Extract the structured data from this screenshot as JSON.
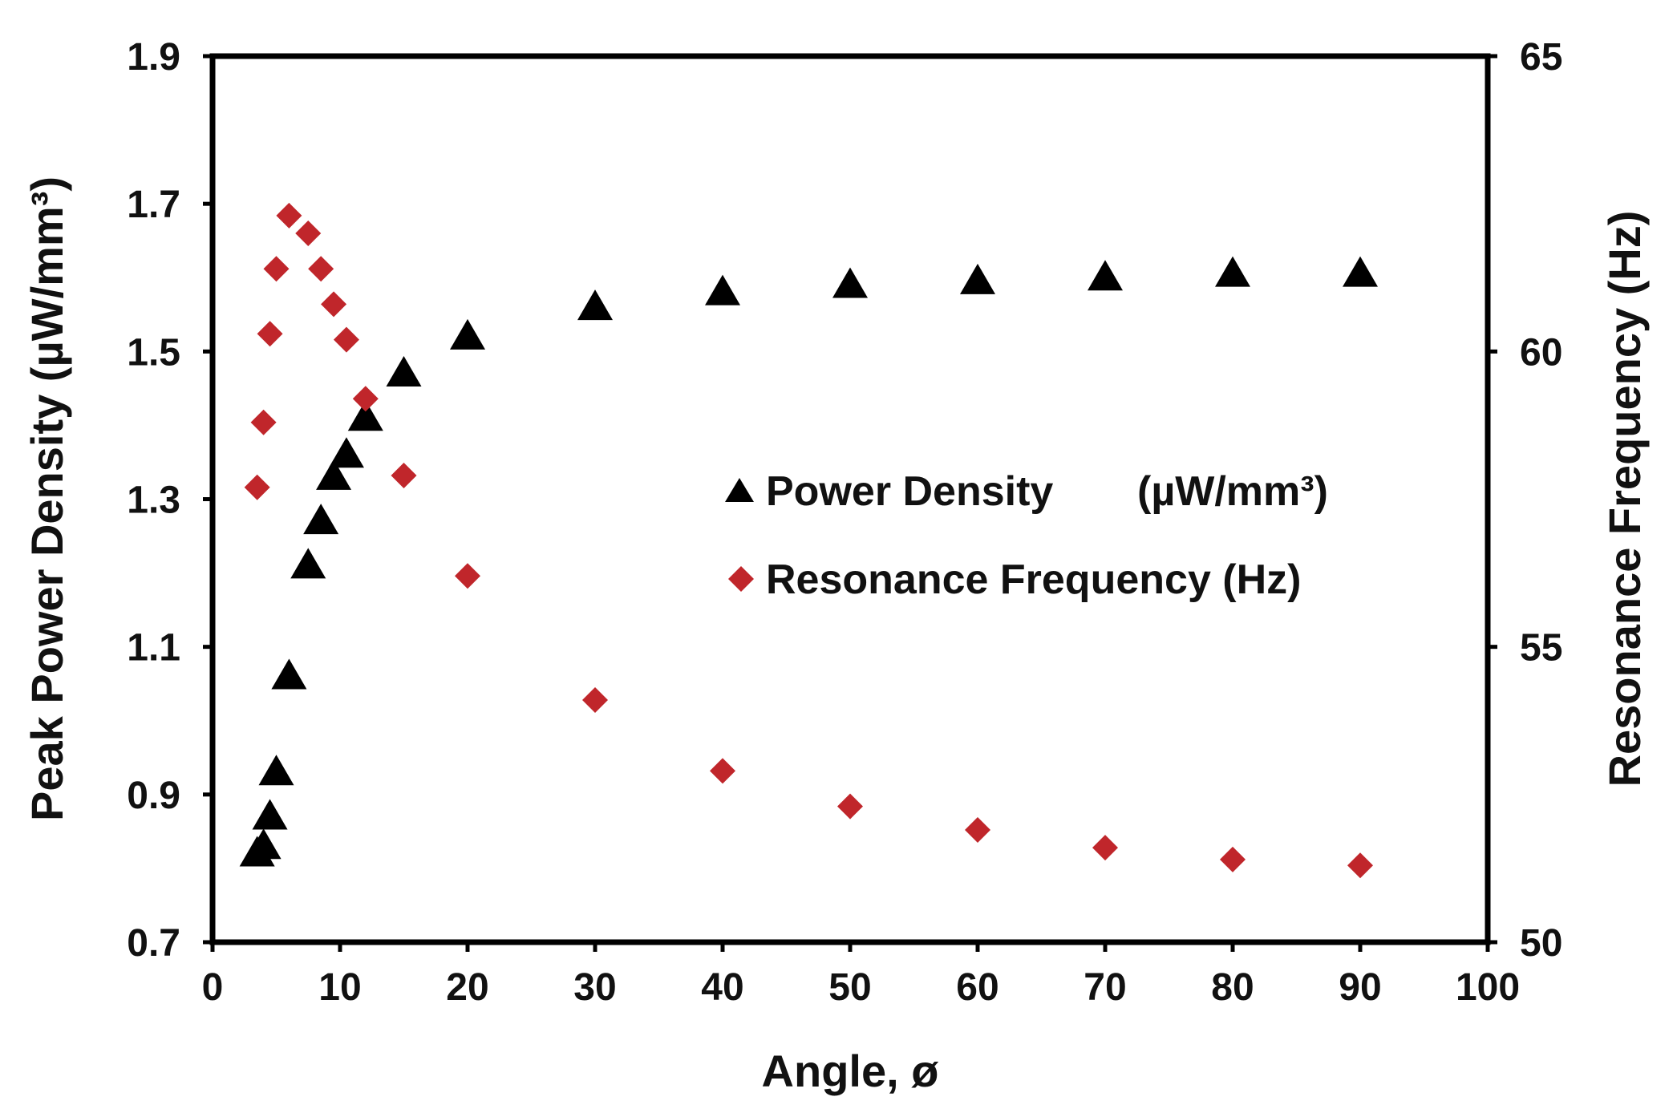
{
  "chart_data": {
    "type": "scatter",
    "xlabel": "Angle, ø",
    "ylabel_left": "Peak Power Density (µW/mm³)",
    "ylabel_right": "Resonance Frequency (Hz)",
    "xlim": [
      0,
      100
    ],
    "ylim_left": [
      0.7,
      1.9
    ],
    "ylim_right": [
      50,
      65
    ],
    "x_ticks": [
      "0",
      "10",
      "20",
      "30",
      "40",
      "50",
      "60",
      "70",
      "80",
      "90",
      "100"
    ],
    "y_left_ticks": [
      "0.7",
      "0.9",
      "1.1",
      "1.3",
      "1.5",
      "1.7",
      "1.9"
    ],
    "y_right_ticks": [
      "50",
      "55",
      "60",
      "65"
    ],
    "grid": false,
    "legend_position": "center-right",
    "series": [
      {
        "name": "Power Density",
        "legend_label": "Power Density",
        "legend_unit": "(µW/mm³)",
        "axis": "left",
        "marker": "triangle",
        "color": "#000000",
        "x": [
          3.5,
          4.0,
          4.5,
          5.0,
          6.0,
          7.5,
          8.5,
          9.5,
          10.5,
          12,
          15,
          20,
          30,
          40,
          50,
          60,
          70,
          80,
          90
        ],
        "y": [
          0.82,
          0.83,
          0.87,
          0.93,
          1.06,
          1.21,
          1.27,
          1.33,
          1.36,
          1.41,
          1.47,
          1.52,
          1.56,
          1.58,
          1.59,
          1.595,
          1.6,
          1.605,
          1.605
        ]
      },
      {
        "name": "Resonance Frequency (Hz)",
        "legend_label": "Resonance Frequency (Hz)",
        "axis": "right",
        "marker": "diamond",
        "color": "#c0262b",
        "x": [
          3.5,
          4.0,
          4.5,
          5.0,
          6.0,
          7.5,
          8.5,
          9.5,
          10.5,
          12,
          15,
          20,
          30,
          40,
          50,
          60,
          70,
          80,
          90
        ],
        "y": [
          57.7,
          58.8,
          60.3,
          61.4,
          62.3,
          62.0,
          61.4,
          60.8,
          60.2,
          59.2,
          57.9,
          56.2,
          54.1,
          52.9,
          52.3,
          51.9,
          51.6,
          51.4,
          51.3
        ]
      }
    ]
  }
}
